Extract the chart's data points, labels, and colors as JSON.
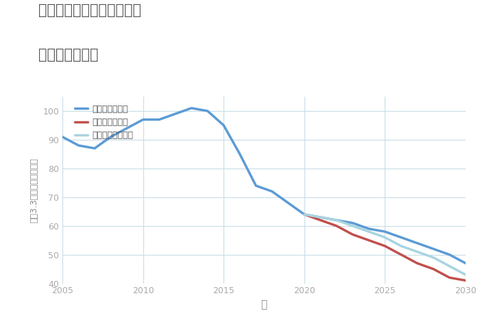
{
  "title_line1": "神奈川県伊勢原市東大竹の",
  "title_line2": "土地の価格推移",
  "xlabel": "年",
  "ylabel": "坪（3.3㎡）単価（万円）",
  "background_color": "#ffffff",
  "grid_color": "#c8dce8",
  "title_color": "#555555",
  "axis_label_color": "#888888",
  "tick_color": "#aaaaaa",
  "xlim": [
    2005,
    2030
  ],
  "ylim": [
    40,
    105
  ],
  "yticks": [
    40,
    50,
    60,
    70,
    80,
    90,
    100
  ],
  "xticks": [
    2005,
    2010,
    2015,
    2020,
    2025,
    2030
  ],
  "good_scenario": {
    "label": "グッドシナリオ",
    "color": "#5b9bd5",
    "linewidth": 2.5,
    "x": [
      2005,
      2006,
      2007,
      2008,
      2009,
      2010,
      2011,
      2012,
      2013,
      2014,
      2015,
      2016,
      2017,
      2018,
      2019,
      2020,
      2021,
      2022,
      2023,
      2024,
      2025,
      2026,
      2027,
      2028,
      2029,
      2030
    ],
    "y": [
      91,
      88,
      87,
      91,
      94,
      97,
      97,
      99,
      101,
      100,
      95,
      85,
      74,
      72,
      68,
      64,
      63,
      62,
      61,
      59,
      58,
      56,
      54,
      52,
      50,
      47
    ]
  },
  "bad_scenario": {
    "label": "バッドシナリオ",
    "color": "#c0504d",
    "linewidth": 2.5,
    "x": [
      2020,
      2021,
      2022,
      2023,
      2024,
      2025,
      2026,
      2027,
      2028,
      2029,
      2030
    ],
    "y": [
      64,
      62,
      60,
      57,
      55,
      53,
      50,
      47,
      45,
      42,
      41
    ]
  },
  "normal_scenario": {
    "label": "ノーマルシナリオ",
    "color": "#a8d4e0",
    "linewidth": 2.5,
    "x": [
      2020,
      2021,
      2022,
      2023,
      2024,
      2025,
      2026,
      2027,
      2028,
      2029,
      2030
    ],
    "y": [
      64,
      63,
      62,
      60,
      58,
      56,
      53,
      51,
      49,
      46,
      43
    ]
  }
}
